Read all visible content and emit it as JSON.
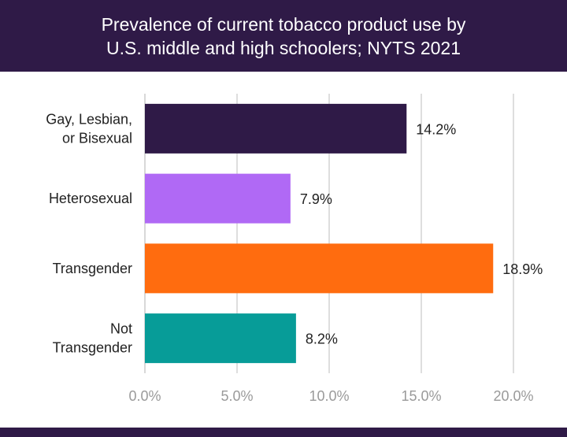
{
  "title_lines": [
    "Prevalence of current tobacco product use by",
    "U.S. middle and high schoolers; NYTS 2021"
  ],
  "chart_data": {
    "type": "bar",
    "orientation": "horizontal",
    "title": "Prevalence of current tobacco product use by U.S. middle and high schoolers; NYTS 2021",
    "categories": [
      [
        "Gay, Lesbian,",
        "or Bisexual"
      ],
      [
        "Heterosexual"
      ],
      [
        "Transgender"
      ],
      [
        "Not",
        "Transgender"
      ]
    ],
    "values": [
      14.2,
      7.9,
      18.9,
      8.2
    ],
    "value_labels": [
      "14.2%",
      "7.9%",
      "18.9%",
      "8.2%"
    ],
    "colors": [
      "#2f1a47",
      "#b069f5",
      "#ff6c0f",
      "#079c98"
    ],
    "xlim": [
      0,
      20
    ],
    "xticks": [
      0,
      5,
      10,
      15,
      20
    ],
    "xtick_labels": [
      "0.0%",
      "5.0%",
      "10.0%",
      "15.0%",
      "20.0%"
    ],
    "grid": "vertical",
    "legend": "none"
  }
}
